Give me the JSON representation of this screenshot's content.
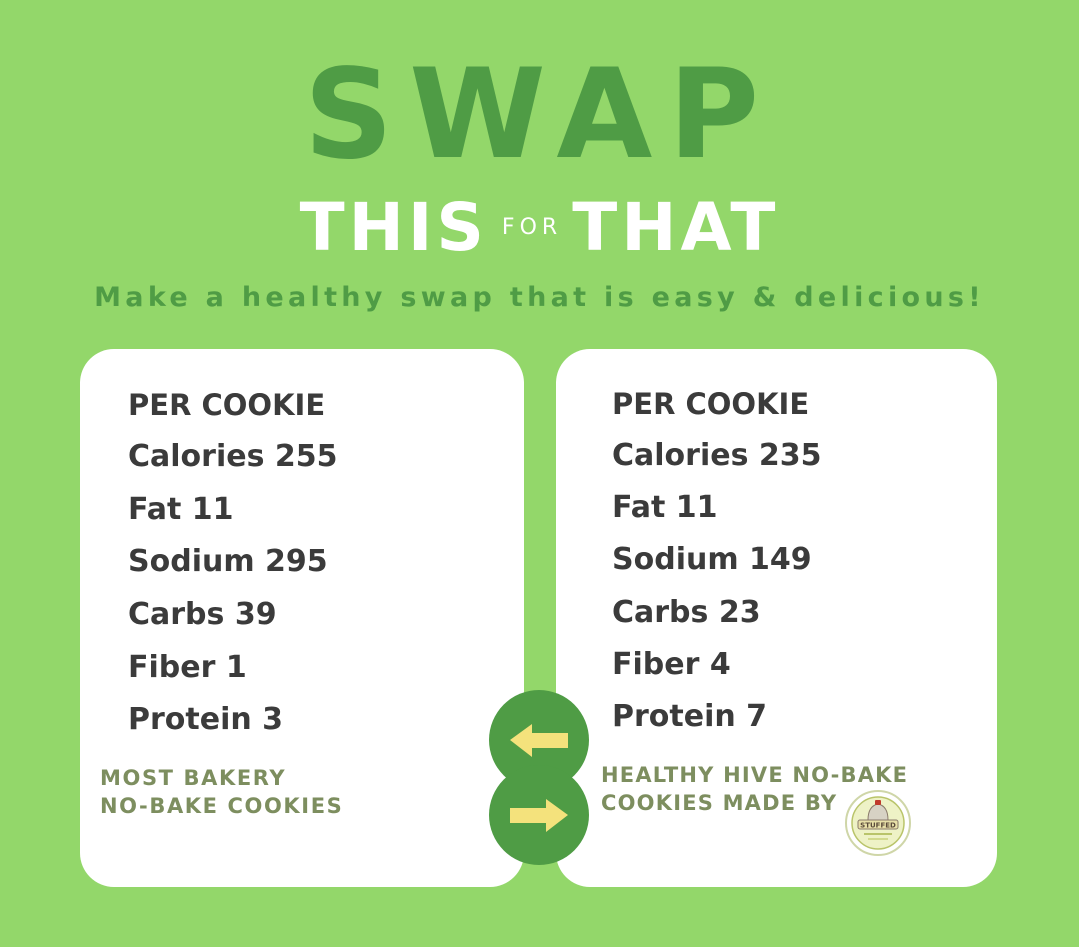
{
  "title": {
    "main": "SWAP",
    "this": "THIS",
    "for": "FOR",
    "that": "THAT"
  },
  "tagline": "Make a healthy swap that is easy & delicious!",
  "left_card": {
    "header": "PER COOKIE",
    "stats": [
      "Calories 255",
      "Fat 11",
      "Sodium 295",
      "Carbs 39",
      "Fiber 1",
      "Protein 3"
    ],
    "footer_line1": "MOST BAKERY",
    "footer_line2": "NO-BAKE COOKIES"
  },
  "right_card": {
    "header": "PER COOKIE",
    "stats": [
      "Calories 235",
      "Fat 11",
      "Sodium 149",
      "Carbs 23",
      "Fiber 4",
      "Protein 7"
    ],
    "footer_line1": "HEALTHY HIVE NO-BAKE",
    "footer_line2": "COOKIES MADE BY",
    "logo_text": "STUFFED"
  },
  "icons": {
    "left_arrow": "arrow-left-icon",
    "right_arrow": "arrow-right-icon",
    "logo": "stuffed-logo-icon"
  },
  "colors": {
    "background": "#93d76a",
    "accent_green": "#4f9c45",
    "arrow_yellow": "#f4e27c",
    "card": "#ffffff",
    "footer_text": "#7d8e5f"
  }
}
